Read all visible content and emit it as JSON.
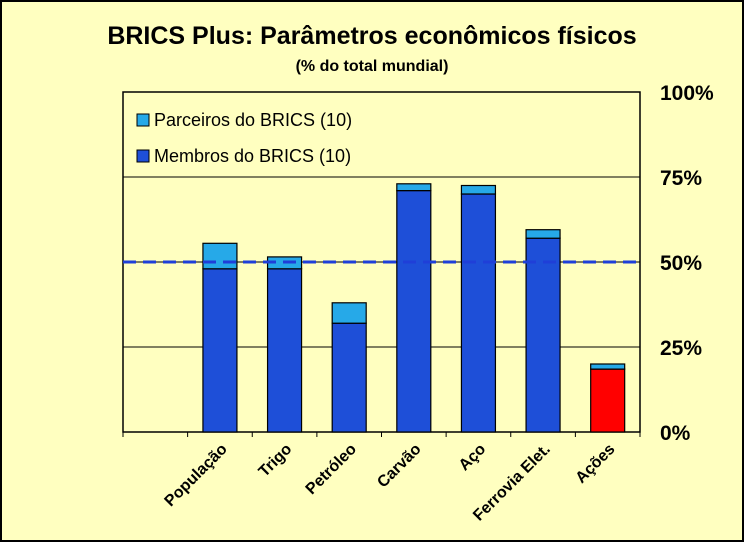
{
  "chart_data": {
    "type": "bar",
    "stacked": true,
    "title": "BRICS Plus: Parâmetros econômicos físicos",
    "subtitle": "(% do total mundial)",
    "xlabel": "",
    "ylabel": "",
    "ylim": [
      0,
      100
    ],
    "y_ticks": [
      "0%",
      "25%",
      "50%",
      "75%",
      "100%"
    ],
    "y_axis_side": "right",
    "grid": true,
    "legend_placement": "top-left",
    "reference_line": {
      "value": 50,
      "style": "dashed",
      "color": "#1f3fd8"
    },
    "categories": [
      "População",
      "Trigo",
      "Petróleo",
      "Carvão",
      "Aço",
      "Ferrovia Elet.",
      "Ações"
    ],
    "series": [
      {
        "name": "Membros do BRICS (10)",
        "color": "#1e4fd8",
        "values": [
          48,
          48,
          32,
          71,
          70,
          57,
          18.5
        ]
      },
      {
        "name": "Parceiros do BRICS (10)",
        "color": "#26a9e8",
        "values": [
          7.5,
          3.5,
          6,
          2,
          2.5,
          2.5,
          1.5
        ]
      }
    ],
    "highlight": {
      "category": "Ações",
      "color": "#ff0000"
    },
    "background": "#ffffc0"
  }
}
